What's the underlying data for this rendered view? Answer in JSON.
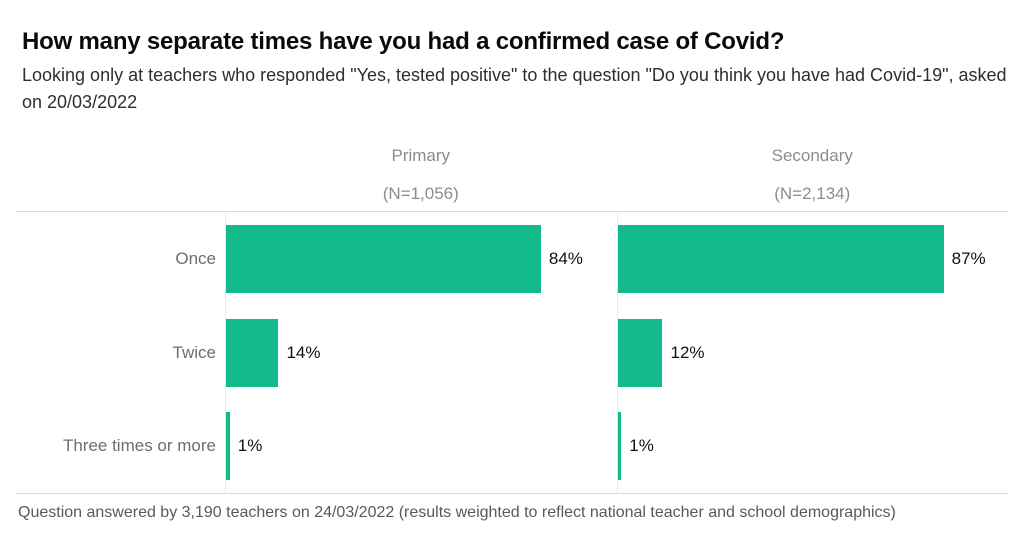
{
  "title": "How many separate times have you had a confirmed case of Covid?",
  "subtitle": "Looking only at teachers who responded \"Yes, tested positive\" to the question \"Do you think you have had Covid-19\", asked on 20/03/2022",
  "footer": "Question answered by 3,190 teachers on 24/03/2022 (results weighted to reflect national teacher and school demographics)",
  "colors": {
    "bar_green": "#12ba8c",
    "rule_gray": "#dcdcdc",
    "axis_gray": "#e9e9e9",
    "category_label_gray": "#6e6e6e",
    "header_gray": "#8c8c8c",
    "value_black": "#111111",
    "footer_gray": "#595959"
  },
  "chart_data": {
    "type": "bar",
    "orientation": "horizontal",
    "title": "How many separate times have you had a confirmed case of Covid?",
    "subtitle": "Looking only at teachers who responded \"Yes, tested positive\" to the question \"Do you think you have had Covid-19\", asked on 20/03/2022",
    "caption": "Question answered by 3,190 teachers on 24/03/2022 (results weighted to reflect national teacher and school demographics)",
    "categories": [
      "Once",
      "Twice",
      "Three times or more"
    ],
    "value_suffix": "%",
    "xlim": [
      0,
      100
    ],
    "grid": false,
    "legend": "none",
    "panels": [
      {
        "name": "Primary",
        "n_label": "(N=1,056)",
        "values": [
          84,
          14,
          1
        ],
        "labels": [
          "84%",
          "14%",
          "1%"
        ]
      },
      {
        "name": "Secondary",
        "n_label": "(N=2,134)",
        "values": [
          87,
          12,
          1
        ],
        "labels": [
          "87%",
          "12%",
          "1%"
        ]
      }
    ]
  }
}
